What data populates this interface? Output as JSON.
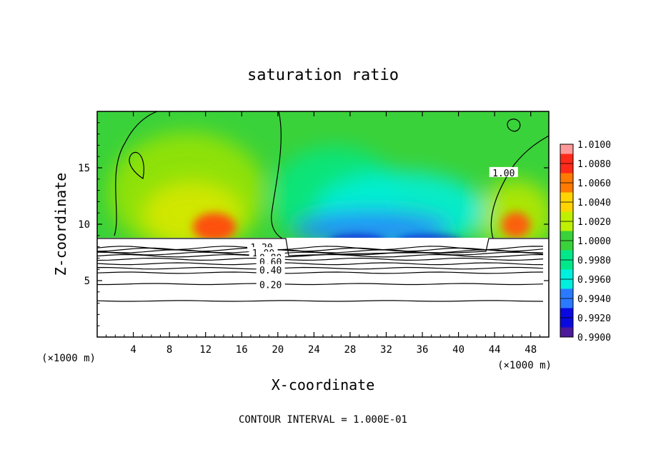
{
  "chart_data": {
    "type": "heatmap",
    "title": "saturation ratio",
    "xlabel": "X-coordinate",
    "ylabel": "Z-coordinate",
    "x_unit_label_left": "(×1000 m)",
    "x_unit_label_right": "(×1000 m)",
    "xlim": [
      0,
      50
    ],
    "ylim": [
      0,
      20
    ],
    "x_ticks": [
      4,
      8,
      12,
      16,
      20,
      24,
      28,
      32,
      36,
      40,
      44,
      48
    ],
    "x_tick_labels": [
      "4",
      "8",
      "12",
      "16",
      "20",
      "24",
      "28",
      "32",
      "36",
      "40",
      "44",
      "48"
    ],
    "y_ticks": [
      5,
      10,
      15
    ],
    "y_tick_labels": [
      "5",
      "10",
      "15"
    ],
    "footer": "CONTOUR INTERVAL = 1.000E-01",
    "colorbar": {
      "levels": [
        1.01,
        1.008,
        1.006,
        1.004,
        1.002,
        1.0,
        0.998,
        0.996,
        0.994,
        0.992,
        0.99
      ],
      "labels": [
        "1.0100",
        "1.0080",
        "1.0060",
        "1.0040",
        "1.0020",
        "1.0000",
        "0.9980",
        "0.9960",
        "0.9940",
        "0.9920",
        "0.9900"
      ],
      "colors": [
        "#ff9a9a",
        "#ff2a1a",
        "#ff7a00",
        "#ffd400",
        "#bff000",
        "#3ad23a",
        "#00e88a",
        "#00f0e0",
        "#2a7aff",
        "#0a0ae0",
        "#4a1a9a"
      ]
    },
    "contour_labels": [
      {
        "text": "1.20",
        "x": 18.2,
        "z": 7.9
      },
      {
        "text": "1.00",
        "x": 18.4,
        "z": 7.4
      },
      {
        "text": "0.80",
        "x": 19.2,
        "z": 7.0
      },
      {
        "text": "0.60",
        "x": 19.2,
        "z": 6.6
      },
      {
        "text": "0.40",
        "x": 19.2,
        "z": 5.9
      },
      {
        "text": "0.20",
        "x": 19.2,
        "z": 4.6
      },
      {
        "text": "1.00",
        "x": 45.0,
        "z": 14.5
      }
    ],
    "contour_levels_z": [
      3.2,
      4.7,
      5.7,
      6.1,
      6.5,
      6.9,
      7.2,
      7.4,
      7.6,
      7.75,
      7.9
    ],
    "cloud_base_z": 8.7,
    "field_regions": [
      {
        "name": "warm-moist-column-1",
        "x": 12.2,
        "z": 9.8,
        "value": 1.007
      },
      {
        "name": "warm-moist-column-2",
        "x": 46.5,
        "z": 10.0,
        "value": 1.006
      },
      {
        "name": "dry-band",
        "x": 30.0,
        "z": 9.0,
        "value": 0.993
      }
    ]
  }
}
